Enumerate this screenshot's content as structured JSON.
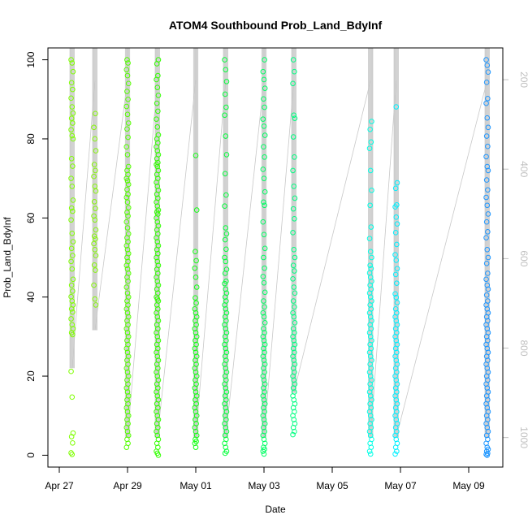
{
  "chart_data": {
    "type": "scatter",
    "title": "ATOM4 Southbound Prob_Land_BdyInf",
    "xlabel": "Date",
    "ylabel": "Prob_Land_BdyInf",
    "x_ticks": [
      "Apr 27",
      "Apr 29",
      "May 01",
      "May 03",
      "May 05",
      "May 07",
      "May 09"
    ],
    "y_ticks": [
      "0",
      "20",
      "40",
      "60",
      "80",
      "100"
    ],
    "y2_ticks": [
      "200",
      "400",
      "600",
      "800",
      "1000"
    ],
    "xlim": [
      "2016-04-26T16:00",
      "2016-05-10T00:00"
    ],
    "ylim": [
      -3,
      103
    ],
    "y2lim": [
      129,
      1066
    ],
    "colors": {
      "trace": "#c8c8c8",
      "axis": "#000000",
      "right_axis": "#bfbfbf"
    },
    "profiles": [
      {
        "date": "2016-04-27T09:00",
        "color": "#7fff00",
        "depth": [
          126,
          845
        ],
        "values": [
          100,
          99.2,
          97,
          94.2,
          92.5,
          90.3,
          88.1,
          86.5,
          85.2,
          84,
          82.3,
          80.8,
          80,
          75,
          73.1,
          70,
          68,
          64.5,
          62.5,
          61.7,
          59.5,
          56.1,
          54,
          52.3,
          50.5,
          49,
          47.1,
          44.5,
          43,
          41.5,
          40.1,
          39,
          38,
          37,
          36.2,
          34.5,
          33,
          32,
          31,
          30.5,
          21.2,
          14.7,
          5.6,
          4.7,
          3.1,
          0.6,
          0.2
        ]
      },
      {
        "date": "2016-04-28T01:00",
        "color": "#86f60a",
        "depth": [
          130,
          760
        ],
        "values": [
          86.4,
          82.9,
          80,
          77,
          73.5,
          72,
          70.5,
          68,
          66.8,
          64.1,
          62.4,
          60.5,
          59.5,
          57,
          55.4,
          54.7,
          53.5,
          52,
          50.5,
          48.1,
          46.8,
          43,
          39.5,
          38
        ]
      },
      {
        "date": "2016-04-29T00:00",
        "color": "#55ff00",
        "depth": [
          126,
          1000
        ],
        "values": [
          100,
          99.2,
          97.5,
          96,
          94,
          92,
          90,
          88.2,
          86.2,
          84,
          82.5,
          80.4,
          78,
          76,
          73,
          72,
          71,
          70,
          69.4,
          68.5,
          67.2,
          66,
          65.2,
          64,
          62.6,
          61.4,
          60.5,
          59,
          57.5,
          56,
          55,
          54,
          53,
          52,
          51,
          50,
          49,
          48,
          47.1,
          46,
          45,
          44,
          42.5,
          41,
          40,
          39,
          38,
          37,
          36,
          35,
          34,
          33,
          32,
          31,
          30,
          29,
          28,
          27,
          26,
          25,
          24,
          23,
          22,
          21,
          20,
          19,
          18,
          17,
          16,
          15,
          14,
          13,
          12,
          11,
          10,
          9,
          8,
          7,
          6,
          5,
          4,
          3,
          2
        ]
      },
      {
        "date": "2016-04-29T21:00",
        "color": "#32ff00",
        "depth": [
          126,
          1000
        ],
        "values": [
          100,
          99,
          96,
          95,
          93,
          91,
          89,
          87,
          85,
          83,
          81,
          80,
          79,
          78,
          77,
          76,
          75,
          74,
          73.5,
          73,
          72,
          71,
          70,
          69,
          68,
          67,
          66,
          65,
          64,
          63,
          62,
          61.5,
          61,
          60,
          59,
          58,
          57,
          56,
          55,
          54,
          53,
          52,
          51,
          50,
          49,
          48,
          47,
          46,
          45,
          44,
          43,
          42,
          41,
          40,
          39.5,
          39,
          38,
          37,
          36,
          35,
          34,
          33,
          32,
          31,
          30,
          29,
          28,
          27,
          26,
          25,
          24,
          23,
          22,
          21,
          20,
          19,
          18,
          17,
          16,
          15,
          14,
          13,
          12,
          11,
          10,
          9,
          8,
          7,
          6,
          5,
          4,
          3,
          2,
          1,
          0.5,
          0
        ]
      },
      {
        "date": "2016-05-01T00:00",
        "color": "#14ff14",
        "depth": [
          126,
          1000
        ],
        "values": [
          75.8,
          62,
          51.5,
          49.2,
          47.3,
          45,
          42.5,
          39.8,
          38.5,
          37,
          36,
          35,
          34,
          33,
          32,
          31,
          30,
          29,
          28,
          27,
          26,
          25,
          24,
          23,
          22,
          21,
          20,
          19,
          18,
          17,
          16,
          15,
          14,
          13,
          12,
          11,
          10,
          9,
          8,
          7,
          6,
          5,
          4,
          3.5,
          3,
          2
        ]
      },
      {
        "date": "2016-05-01T21:00",
        "color": "#05ff3c",
        "depth": [
          126,
          1000
        ],
        "values": [
          100,
          97.5,
          94.5,
          91.3,
          88,
          86,
          80.7,
          76,
          71.2,
          65.8,
          63,
          57.5,
          56,
          54.5,
          52.1,
          50,
          49,
          47,
          46,
          44,
          43.4,
          42,
          41,
          40,
          39,
          38,
          37,
          36,
          35,
          34,
          33,
          32,
          31,
          30,
          29,
          28,
          27,
          26,
          25,
          24,
          23,
          22,
          21,
          20,
          19,
          18,
          17,
          16,
          15,
          14,
          13,
          12,
          11,
          10,
          9,
          8,
          7,
          6,
          5,
          4,
          3,
          2,
          1,
          0.5
        ]
      },
      {
        "date": "2016-05-03T00:00",
        "color": "#00ff64",
        "depth": [
          126,
          1000
        ],
        "values": [
          100,
          97,
          95,
          92.8,
          90.1,
          88,
          85,
          83.2,
          80.9,
          78,
          75.4,
          72.3,
          70,
          66.6,
          64,
          63.2,
          59,
          55.8,
          52.3,
          50,
          47.3,
          45.2,
          43.6,
          41.2,
          39,
          37.5,
          36,
          35,
          33.5,
          32,
          31,
          30,
          29,
          28,
          27,
          26,
          25,
          24,
          23,
          22,
          21,
          20,
          19,
          18,
          17,
          16,
          15,
          14,
          13,
          12,
          11,
          10,
          9,
          8,
          7,
          6,
          5,
          4,
          3,
          2,
          1.5,
          1,
          0.3
        ]
      },
      {
        "date": "2016-05-03T21:00",
        "color": "#00ff82",
        "depth": [
          126,
          900
        ],
        "values": [
          100,
          97,
          94,
          86,
          85.2,
          80.5,
          75.4,
          72,
          68,
          65,
          62.3,
          59.8,
          56.3,
          52,
          50,
          48,
          46.6,
          44.6,
          42.5,
          41,
          39,
          37.5,
          36,
          35,
          33.5,
          32,
          31,
          30,
          29,
          28,
          27,
          26,
          25,
          24,
          23,
          22,
          21,
          20,
          19,
          18,
          17,
          16,
          15,
          14,
          13,
          12,
          11,
          10,
          9,
          8,
          7,
          6,
          5.2
        ]
      },
      {
        "date": "2016-05-06T03:00",
        "color": "#00ffe6",
        "depth": [
          126,
          1000
        ],
        "values": [
          84.4,
          82.4,
          79.2,
          77.6,
          72,
          67,
          63.2,
          57.7,
          54.8,
          51.5,
          50,
          48,
          47.2,
          46.1,
          45,
          44,
          43,
          42,
          41,
          40,
          39,
          38,
          37,
          36,
          35,
          34,
          33,
          32,
          31,
          30,
          29,
          28,
          27,
          26,
          25,
          24,
          23,
          22,
          21,
          20,
          19,
          18,
          17,
          16,
          15,
          14,
          13,
          12,
          11,
          10,
          9,
          8,
          7,
          6,
          5,
          4,
          3,
          2,
          1,
          0.3
        ]
      },
      {
        "date": "2016-05-06T21:00",
        "color": "#00f0ff",
        "depth": [
          126,
          1000
        ],
        "values": [
          88.1,
          68.9,
          67.5,
          63.3,
          62.8,
          60.2,
          58.5,
          56.3,
          53.3,
          50.7,
          49.3,
          47.2,
          45.7,
          43.5,
          40.8,
          39.9,
          38.6,
          37,
          36,
          35,
          34,
          33,
          32,
          31,
          30,
          29,
          28,
          27,
          26,
          25,
          24,
          23,
          22,
          21,
          20,
          19,
          18,
          17,
          16,
          15,
          14,
          13,
          12,
          11,
          10,
          9,
          8,
          7,
          6,
          5,
          4,
          3,
          2,
          1,
          0.3
        ]
      },
      {
        "date": "2016-05-09T13:00",
        "color": "#1e96ff",
        "depth": [
          126,
          1000
        ],
        "values": [
          100,
          98.6,
          96.9,
          94.3,
          90.2,
          89,
          85.3,
          82.9,
          80.7,
          78.1,
          75.5,
          73,
          72,
          69.6,
          67.1,
          65.2,
          63.2,
          61,
          59,
          56.5,
          55,
          52,
          50,
          48.5,
          46,
          44.5,
          43,
          42,
          40.5,
          39,
          38,
          37,
          36,
          35,
          34,
          33,
          32,
          31,
          30,
          29,
          28,
          27,
          26,
          25,
          24,
          23,
          22,
          21,
          20,
          19,
          18,
          17,
          16,
          15,
          14,
          13,
          12,
          11,
          10,
          9,
          8,
          7,
          6,
          5,
          4,
          3,
          2,
          1.5,
          1,
          0.5,
          0.2,
          0
        ]
      }
    ]
  }
}
